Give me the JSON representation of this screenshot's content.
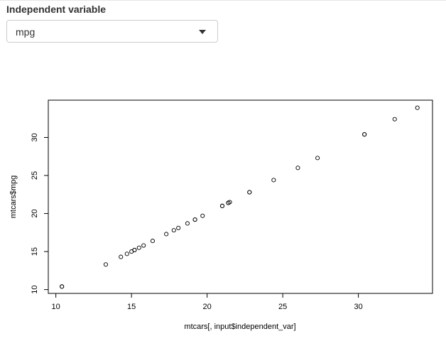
{
  "control": {
    "label": "Independent variable",
    "selected_value": "mpg"
  },
  "chart_data": {
    "type": "scatter",
    "title": "",
    "xlabel": "mtcars[, input$independent_var]",
    "ylabel": "mtcars$mpg",
    "xlim": [
      9.5,
      34.9
    ],
    "ylim": [
      9.5,
      34.9
    ],
    "x_ticks": [
      10,
      15,
      20,
      25,
      30
    ],
    "y_ticks": [
      10,
      15,
      20,
      25,
      30
    ],
    "x_tick_labels": [
      "10",
      "15",
      "20",
      "25",
      "30"
    ],
    "y_tick_labels": [
      "10",
      "15",
      "20",
      "25",
      "30"
    ],
    "x": [
      21.0,
      21.0,
      22.8,
      21.4,
      18.7,
      18.1,
      14.3,
      24.4,
      22.8,
      19.2,
      17.8,
      16.4,
      17.3,
      15.2,
      10.4,
      10.4,
      14.7,
      32.4,
      30.4,
      33.9,
      21.5,
      15.5,
      15.2,
      13.3,
      19.2,
      27.3,
      26.0,
      30.4,
      15.8,
      19.7,
      15.0,
      21.4
    ],
    "y": [
      21.0,
      21.0,
      22.8,
      21.4,
      18.7,
      18.1,
      14.3,
      24.4,
      22.8,
      19.2,
      17.8,
      16.4,
      17.3,
      15.2,
      10.4,
      10.4,
      14.7,
      32.4,
      30.4,
      33.9,
      21.5,
      15.5,
      15.2,
      13.3,
      19.2,
      27.3,
      26.0,
      30.4,
      15.8,
      19.7,
      15.0,
      21.4
    ],
    "marker": "open-circle",
    "grid": false,
    "legend": "none"
  }
}
